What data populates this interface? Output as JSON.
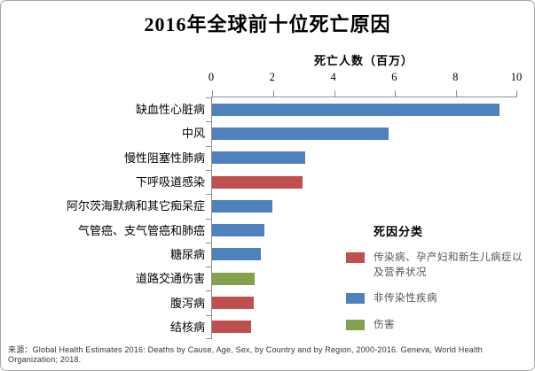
{
  "frame": {
    "background": "#ffffff",
    "border_color": "#a6a6a6"
  },
  "chart_data": {
    "type": "bar",
    "orientation": "horizontal",
    "title": "2016年全球前十位死亡原因",
    "xlabel": "死亡人数（百万）",
    "xlim": [
      0,
      10
    ],
    "xticks": [
      "0",
      "2",
      "4",
      "6",
      "8",
      "10"
    ],
    "grid": false,
    "axis_color": "#8e8e8e",
    "categories": [
      "缺血性心脏病",
      "中风",
      "慢性阻塞性肺病",
      "下呼吸道感染",
      "阿尔茨海默病和其它痴呆症",
      "气管癌、支气管癌和肺癌",
      "糖尿病",
      "道路交通伤害",
      "腹泻病",
      "结核病"
    ],
    "values": [
      9.43,
      5.78,
      3.04,
      2.96,
      1.99,
      1.71,
      1.59,
      1.4,
      1.38,
      1.29
    ],
    "bar_groups": [
      "ncd",
      "ncd",
      "ncd",
      "cmnn",
      "ncd",
      "ncd",
      "ncd",
      "injury",
      "cmnn",
      "cmnn"
    ],
    "legend": {
      "title": "死因分类",
      "position": "inside-right-bottom",
      "entries": [
        {
          "key": "cmnn",
          "label": "传染病、孕产妇和新生儿病症以及营养状况",
          "color": "#c0504d"
        },
        {
          "key": "ncd",
          "label": "非传染性疾病",
          "color": "#4f81bd"
        },
        {
          "key": "injury",
          "label": "伤害",
          "color": "#84a24e"
        }
      ]
    }
  },
  "source_note": "来源：Global Health Estimates 2016: Deaths by Cause, Age, Sex, by Country and by Region, 2000-2016. Geneva, World Health Organization; 2018."
}
